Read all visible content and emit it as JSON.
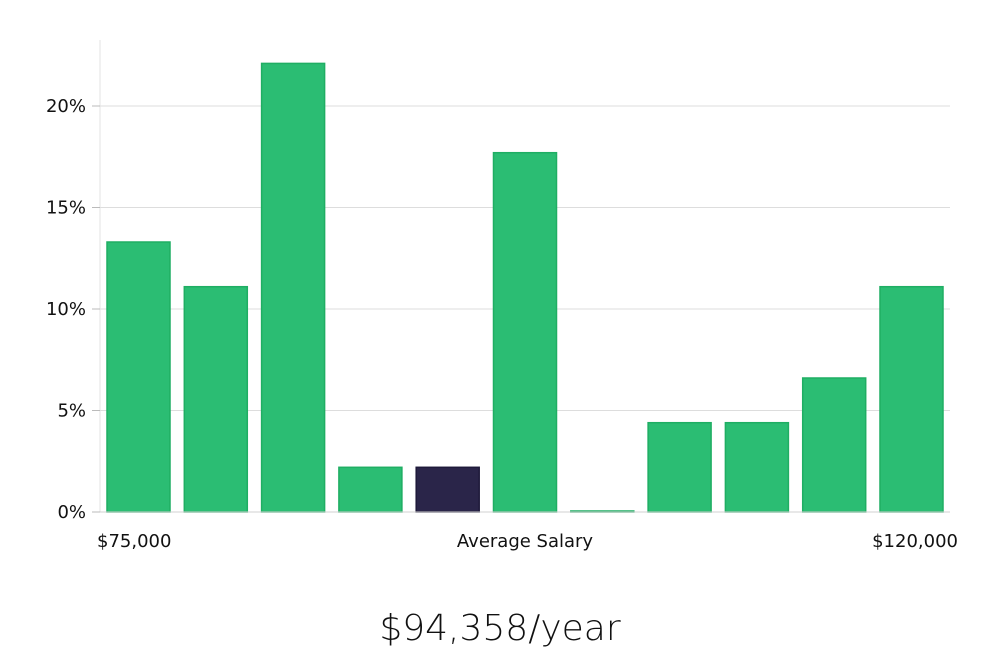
{
  "chart_data": {
    "type": "bar",
    "title": "",
    "ylabel": "",
    "xlabel": "Average Salary",
    "x_range_labels": {
      "start": "$75,000",
      "end": "$120,000"
    },
    "ylim": [
      0,
      23
    ],
    "yticks": [
      0,
      5,
      10,
      15,
      20
    ],
    "ytick_labels": [
      "0%",
      "5%",
      "10%",
      "15%",
      "20%"
    ],
    "grid": true,
    "values": [
      13.3,
      11.1,
      22.1,
      2.2,
      2.2,
      17.7,
      0.0,
      4.4,
      4.4,
      6.6,
      11.1
    ],
    "highlight_index": 4,
    "colors": {
      "bar": "#2bbd73",
      "bar_edge": "#1fae63",
      "highlight": "#2a2549",
      "grid": "#dddddd",
      "axis": "#e3e3e3"
    }
  },
  "average_salary": "$94,358/year"
}
